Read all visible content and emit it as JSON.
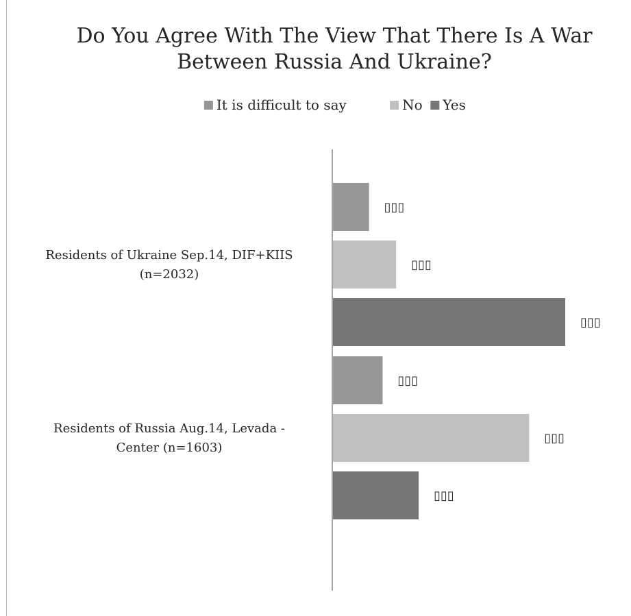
{
  "chart_data": {
    "type": "bar",
    "orientation": "horizontal",
    "title": "Do You Agree With The View That There Is A War Between Russia And Ukraine?",
    "title_lines": [
      "Do You Agree With The View That There Is A War",
      "Between Russia And Ukraine?"
    ],
    "categories": [
      "Residents of Ukraine Sep.14, DIF+KIIS (n=2032)",
      "Residents of Russia Aug.14, Levada - Center (n=1603)"
    ],
    "category_lines": [
      [
        "Residents of Ukraine Sep.14, DIF+KIIS",
        "(n=2032)"
      ],
      [
        "Residents of Russia Aug.14, Levada -",
        "Center (n=1603)"
      ]
    ],
    "series": [
      {
        "name": "It is difficult to say",
        "color": "#969696",
        "values": [
          16,
          22
        ],
        "data_labels": [
          "▯▯▯",
          "▯▯▯"
        ]
      },
      {
        "name": "No",
        "color": "#c0c0c0",
        "values": [
          28,
          87
        ],
        "data_labels": [
          "▯▯▯",
          "▯▯▯"
        ]
      },
      {
        "name": "Yes",
        "color": "#767676",
        "values": [
          103,
          38
        ],
        "data_labels": [
          "▯▯▯",
          "▯▯▯"
        ]
      }
    ],
    "xlim": [
      0,
      120
    ],
    "legend_position": "top",
    "grid": false,
    "xlabel": "",
    "ylabel": ""
  }
}
